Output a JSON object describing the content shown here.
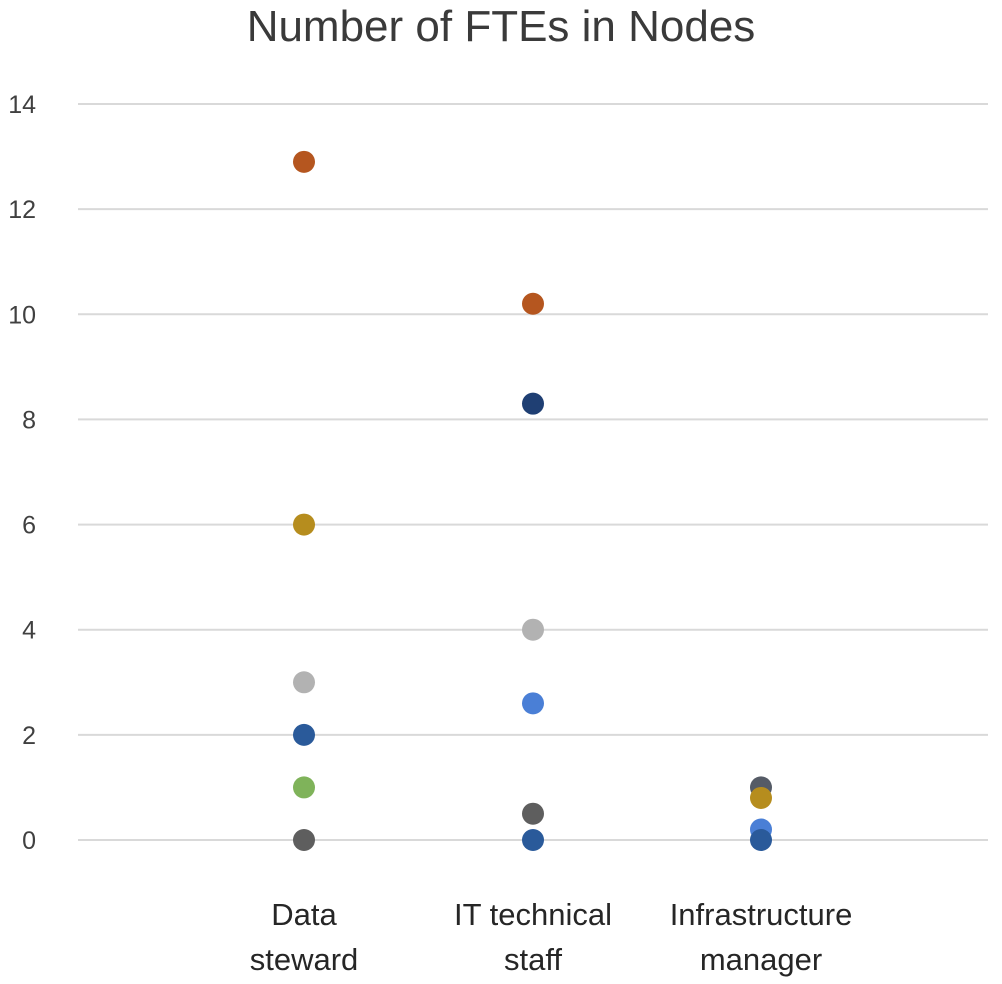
{
  "chart_data": {
    "type": "scatter",
    "title": "Number of FTEs in Nodes",
    "xlabel": "",
    "ylabel": "",
    "categories": [
      [
        "Data",
        "steward"
      ],
      [
        "IT technical",
        "staff"
      ],
      [
        "Infrastructure",
        "manager"
      ]
    ],
    "ylim": [
      0,
      14
    ],
    "yticks": [
      0,
      2,
      4,
      6,
      8,
      10,
      12,
      14
    ],
    "grid": true,
    "legend": "none",
    "points": [
      {
        "category": 0,
        "y": 12.9,
        "color": "#b5561f"
      },
      {
        "category": 0,
        "y": 6.0,
        "color": "#b68d1e"
      },
      {
        "category": 0,
        "y": 3.0,
        "color": "#b2b2b2"
      },
      {
        "category": 0,
        "y": 2.0,
        "color": "#2a5a9a"
      },
      {
        "category": 0,
        "y": 1.0,
        "color": "#7fb35a"
      },
      {
        "category": 0,
        "y": 0.0,
        "color": "#5e5e5e"
      },
      {
        "category": 1,
        "y": 10.2,
        "color": "#b5561f"
      },
      {
        "category": 1,
        "y": 8.3,
        "color": "#1f3f73"
      },
      {
        "category": 1,
        "y": 4.0,
        "color": "#b2b2b2"
      },
      {
        "category": 1,
        "y": 2.6,
        "color": "#4a7fd6"
      },
      {
        "category": 1,
        "y": 0.5,
        "color": "#5e5e5e"
      },
      {
        "category": 1,
        "y": 0.0,
        "color": "#2a5a9a"
      },
      {
        "category": 2,
        "y": 1.0,
        "color": "#555b66"
      },
      {
        "category": 2,
        "y": 0.8,
        "color": "#b68d1e"
      },
      {
        "category": 2,
        "y": 0.2,
        "color": "#4a7fd6"
      },
      {
        "category": 2,
        "y": 0.0,
        "color": "#2a5a9a"
      }
    ]
  }
}
